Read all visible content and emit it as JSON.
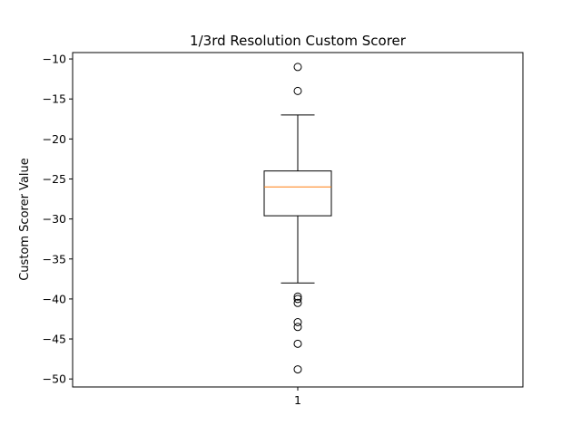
{
  "chart_data": {
    "type": "box",
    "title": "1/3rd Resolution Custom Scorer",
    "xlabel": "",
    "ylabel": "Custom Scorer Value",
    "categories": [
      "1"
    ],
    "ylim": [
      -51,
      -9.2
    ],
    "yticks": [
      -10,
      -15,
      -20,
      -25,
      -30,
      -35,
      -40,
      -45,
      -50
    ],
    "grid": false,
    "boxes": [
      {
        "category": "1",
        "whisker_low": -38,
        "q1": -29.6,
        "median": -26,
        "q3": -24,
        "whisker_high": -17,
        "outliers": [
          -11,
          -14,
          -39.7,
          -40,
          -40.5,
          -42.9,
          -43.5,
          -45.6,
          -48.8
        ]
      }
    ],
    "colors": {
      "box": "#000000",
      "median": "#ff7f0e",
      "outlier": "#000000"
    }
  }
}
